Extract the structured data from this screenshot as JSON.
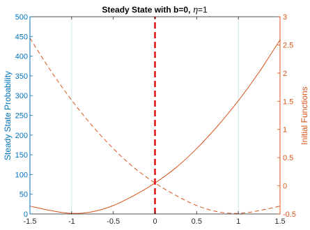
{
  "chart_data": {
    "type": "line",
    "title": "Steady State with b=0, η=1",
    "title_prefix": "Steady State with b=0, ",
    "title_eta": "η",
    "title_suffix": "=1",
    "ylabel_left": "Steady State Probability",
    "ylabel_right": "Initial Functions",
    "xlim": [
      -1.5,
      1.5
    ],
    "ylim_left": [
      0,
      500
    ],
    "ylim_right": [
      -0.5,
      3
    ],
    "grid": "vertical lines at x = -1 and x = 1",
    "x_ticks": [
      "-1.5",
      "-1",
      "-0.5",
      "0",
      "0.5",
      "1",
      "1.5"
    ],
    "x_tick_values": [
      -1.5,
      -1,
      -0.5,
      0,
      0.5,
      1,
      1.5
    ],
    "y_left_ticks": [
      "0",
      "50",
      "100",
      "150",
      "200",
      "250",
      "300",
      "350",
      "400",
      "450",
      "500"
    ],
    "y_left_tick_values": [
      0,
      50,
      100,
      150,
      200,
      250,
      300,
      350,
      400,
      450,
      500
    ],
    "y_right_ticks": [
      "-0.5",
      "0",
      "0.5",
      "1",
      "1.5",
      "2",
      "2.5",
      "3"
    ],
    "y_right_tick_values": [
      -0.5,
      0,
      0.5,
      1,
      1.5,
      2,
      2.5,
      3
    ],
    "series": [
      {
        "style": "solid",
        "axis": "right",
        "color": "#d95319",
        "x": [
          -1.5,
          -1.25,
          -1.0,
          -0.75,
          -0.5,
          -0.25,
          0.0,
          0.25,
          0.5,
          0.75,
          1.0,
          1.25,
          1.5
        ],
        "y": [
          -0.36,
          -0.44,
          -0.49,
          -0.46,
          -0.35,
          -0.17,
          0.05,
          0.32,
          0.66,
          1.06,
          1.51,
          2.02,
          2.59
        ]
      },
      {
        "style": "dashed",
        "axis": "right",
        "color": "#d95319",
        "x": [
          -1.5,
          -1.25,
          -1.0,
          -0.75,
          -0.5,
          -0.25,
          0.0,
          0.25,
          0.5,
          0.75,
          1.0,
          1.25,
          1.5
        ],
        "y": [
          2.62,
          2.04,
          1.52,
          1.06,
          0.66,
          0.32,
          0.05,
          -0.17,
          -0.35,
          -0.46,
          -0.49,
          -0.44,
          -0.36
        ]
      },
      {
        "style": "bold-dashed",
        "axis": "left",
        "color": "#e31a1c",
        "x": [
          0,
          0
        ],
        "y": [
          0,
          500
        ]
      }
    ],
    "colors": {
      "left_axis": "#0072bd",
      "right_axis": "#d95319",
      "grid": "#cfe3ea"
    }
  }
}
